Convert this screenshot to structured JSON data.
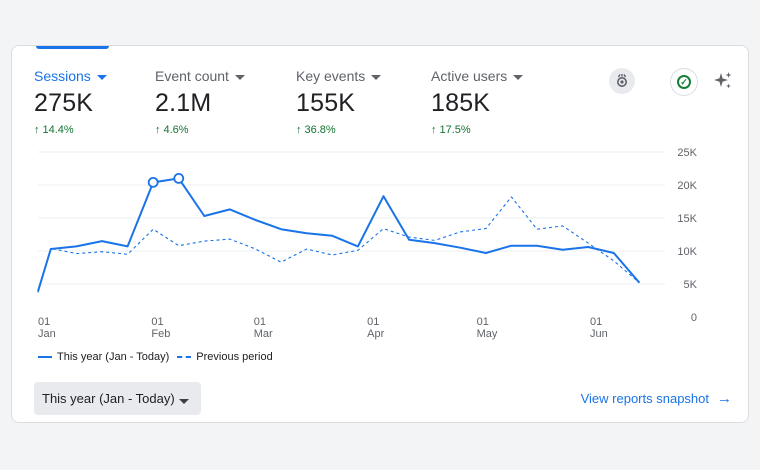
{
  "metrics": [
    {
      "label": "Sessions",
      "value": "275K",
      "change": "14.4%",
      "active": true
    },
    {
      "label": "Event count",
      "value": "2.1M",
      "change": "4.6%",
      "active": false
    },
    {
      "label": "Key events",
      "value": "155K",
      "change": "36.8%",
      "active": false
    },
    {
      "label": "Active users",
      "value": "185K",
      "change": "17.5%",
      "active": false
    }
  ],
  "icons": {
    "insights": "insights-icon",
    "check": "check-circle-icon",
    "sparkle": "sparkle-icon"
  },
  "legend": {
    "current": "This year (Jan - Today)",
    "previous": "Previous period"
  },
  "date_range": {
    "selected": "This year (Jan - Today)"
  },
  "view_link": "View reports snapshot",
  "colors": {
    "accent": "#1a73e8",
    "positive": "#137333"
  },
  "chart_data": {
    "type": "line",
    "title": "",
    "xlabel": "",
    "ylabel": "",
    "ylim": [
      0,
      25000
    ],
    "y_ticks": [
      "0",
      "5K",
      "10K",
      "15K",
      "20K",
      "25K"
    ],
    "x_ticks": [
      {
        "day": "01",
        "month": "Jan",
        "week": 0
      },
      {
        "day": "01",
        "month": "Feb",
        "week": 4.43
      },
      {
        "day": "01",
        "month": "Mar",
        "week": 8.43
      },
      {
        "day": "01",
        "month": "Apr",
        "week": 12.86
      },
      {
        "day": "01",
        "month": "May",
        "week": 17.14
      },
      {
        "day": "01",
        "month": "Jun",
        "week": 21.57
      }
    ],
    "x_range_weeks": [
      0,
      24.5
    ],
    "y_grid": true,
    "legend_position": "bottom-left",
    "series": [
      {
        "name": "This year (Jan - Today)",
        "style": "solid",
        "x": [
          0,
          0.5,
          1.5,
          2.5,
          3.5,
          4.5,
          5.5,
          6.5,
          7.5,
          8.5,
          9.5,
          10.5,
          11.5,
          12.5,
          13.5,
          14.5,
          15.5,
          16.5,
          17.5,
          18.5,
          19.5,
          20.5,
          21.5,
          22.5,
          23.5
        ],
        "values": [
          3900,
          10300,
          10700,
          11500,
          10700,
          20400,
          21000,
          15300,
          16300,
          14700,
          13300,
          12700,
          12300,
          10700,
          18300,
          11700,
          11200,
          10500,
          9700,
          10800,
          10800,
          10200,
          10600,
          9700,
          5200
        ],
        "highlighted": [
          5,
          6
        ]
      },
      {
        "name": "Previous period",
        "style": "dashed",
        "x": [
          0,
          0.5,
          1.5,
          2.5,
          3.5,
          4.5,
          5.5,
          6.5,
          7.5,
          8.5,
          9.5,
          10.5,
          11.5,
          12.5,
          13.5,
          14.5,
          15.5,
          16.5,
          17.5,
          18.5,
          19.5,
          20.5,
          21.5,
          22.5,
          23.5
        ],
        "values": [
          3700,
          10400,
          9600,
          9900,
          9500,
          13300,
          10800,
          11500,
          11800,
          10300,
          8300,
          10300,
          9400,
          10100,
          13400,
          12100,
          11600,
          12900,
          13400,
          18200,
          13300,
          13800,
          11200,
          8500,
          5200
        ]
      }
    ]
  }
}
